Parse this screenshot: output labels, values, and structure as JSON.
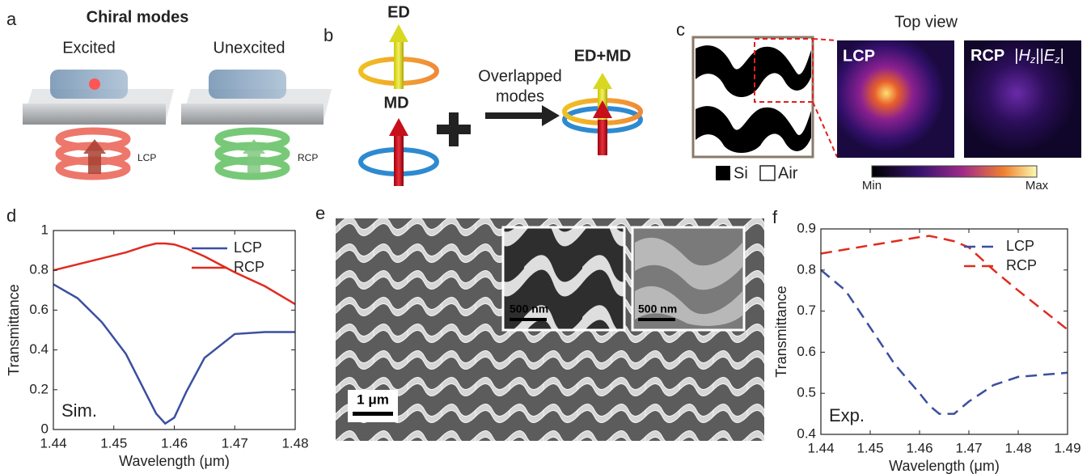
{
  "panels": {
    "a": {
      "letter": "a",
      "title": "Chiral modes",
      "excited": "Excited",
      "unexcited": "Unexcited",
      "lcp": "LCP",
      "rcp": "RCP"
    },
    "b": {
      "letter": "b",
      "ed": "ED",
      "md": "MD",
      "overlapped": [
        "Overlapped",
        "modes"
      ],
      "combined": "ED+MD"
    },
    "c": {
      "letter": "c",
      "title": "Top view",
      "lcp": "LCP",
      "rcp": "RCP",
      "field": {
        "pipes": [
          "|",
          "||",
          "|"
        ],
        "h": "H",
        "h_sub": "z",
        "e": "E",
        "e_sub": "z"
      },
      "si": "Si",
      "air": "Air",
      "min": "Min",
      "max": "Max"
    },
    "e": {
      "letter": "e",
      "scale_inset_1": "500 nm",
      "scale_inset_2": "500 nm",
      "scale_main": "1 μm"
    },
    "d": {
      "letter": "d"
    },
    "f": {
      "letter": "f"
    }
  },
  "chart_data": [
    {
      "type": "line",
      "xlabel": "Wavelength (μm)",
      "ylabel": "Transmittance",
      "annotation": "Sim.",
      "x": [
        1.44,
        1.444,
        1.448,
        1.452,
        1.455,
        1.457,
        1.4585,
        1.46,
        1.462,
        1.465,
        1.47,
        1.475,
        1.48
      ],
      "series": [
        {
          "name": "LCP",
          "color": "#3a4fa0",
          "values": [
            0.73,
            0.66,
            0.54,
            0.38,
            0.2,
            0.08,
            0.03,
            0.06,
            0.19,
            0.36,
            0.48,
            0.49,
            0.49
          ]
        },
        {
          "name": "RCP",
          "color": "#e02b20",
          "values": [
            0.8,
            0.83,
            0.86,
            0.89,
            0.92,
            0.935,
            0.935,
            0.93,
            0.91,
            0.87,
            0.79,
            0.72,
            0.63
          ]
        }
      ],
      "xlim": [
        1.44,
        1.48
      ],
      "xticks": [
        1.44,
        1.45,
        1.46,
        1.47,
        1.48
      ],
      "ylim": [
        0,
        1
      ],
      "yticks": [
        0,
        0.2,
        0.4,
        0.6,
        0.8,
        1
      ],
      "line_style": "solid",
      "legend": "upper right"
    },
    {
      "type": "line",
      "xlabel": "Wavelength (μm)",
      "ylabel": "Transmittance",
      "annotation": "Exp.",
      "x": [
        1.44,
        1.445,
        1.45,
        1.455,
        1.46,
        1.462,
        1.464,
        1.467,
        1.47,
        1.475,
        1.48,
        1.49
      ],
      "series": [
        {
          "name": "LCP",
          "color": "#3a4fa0",
          "values": [
            0.8,
            0.75,
            0.66,
            0.57,
            0.5,
            0.47,
            0.45,
            0.45,
            0.48,
            0.52,
            0.54,
            0.55
          ]
        },
        {
          "name": "RCP",
          "color": "#e02b20",
          "values": [
            0.84,
            0.85,
            0.86,
            0.87,
            0.88,
            0.883,
            0.878,
            0.87,
            0.855,
            0.8,
            0.75,
            0.655
          ]
        }
      ],
      "xlim": [
        1.44,
        1.49
      ],
      "xticks": [
        1.44,
        1.45,
        1.46,
        1.47,
        1.48,
        1.49
      ],
      "ylim": [
        0.4,
        0.9
      ],
      "yticks": [
        0.4,
        0.5,
        0.6,
        0.7,
        0.8,
        0.9
      ],
      "line_style": "dashed",
      "legend": "upper right"
    }
  ]
}
